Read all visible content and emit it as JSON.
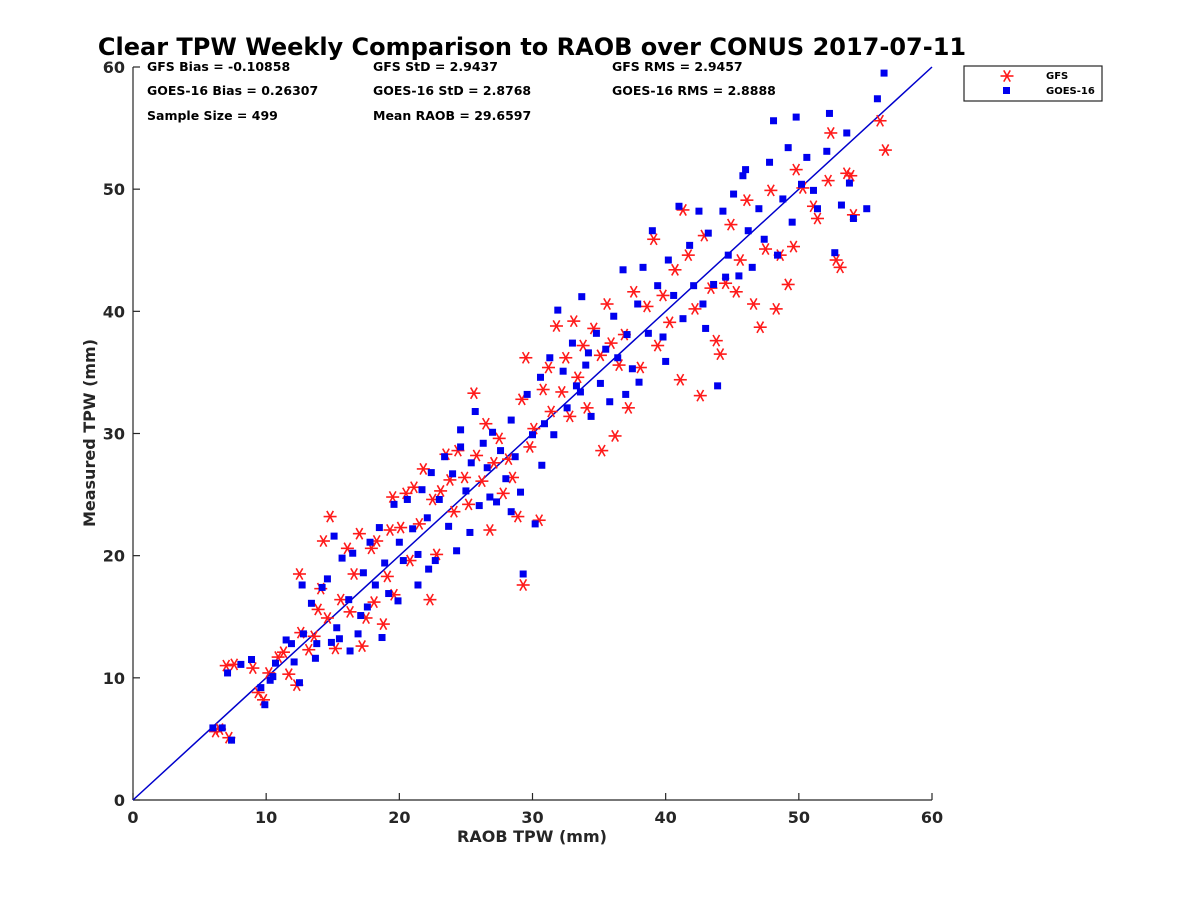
{
  "chart_data": {
    "type": "scatter",
    "title": "Clear TPW Weekly Comparison to RAOB over CONUS 2017-07-11",
    "xlabel": "RAOB TPW (mm)",
    "ylabel": "Measured TPW (mm)",
    "xlim": [
      0,
      60
    ],
    "ylim": [
      0,
      60
    ],
    "x_ticks": [
      "0",
      "10",
      "20",
      "30",
      "40",
      "50",
      "60"
    ],
    "y_ticks": [
      "0",
      "10",
      "20",
      "30",
      "40",
      "50",
      "60"
    ],
    "grid": false,
    "legend_position": "top-right, outside plot",
    "reference_line": {
      "type": "1:1",
      "from": [
        0,
        0
      ],
      "to": [
        60,
        60
      ],
      "color": "#0000cc"
    },
    "stats": {
      "gfs_bias": "GFS Bias = -0.10858",
      "gfs_std": "GFS StD = 2.9437",
      "gfs_rms": "GFS RMS = 2.9457",
      "goes_bias": "GOES-16 Bias = 0.26307",
      "goes_std": "GOES-16 StD = 2.8768",
      "goes_rms": "GOES-16 RMS = 2.8888",
      "sample_size": "Sample Size = 499",
      "mean_raob": "Mean RAOB = 29.6597"
    },
    "series": [
      {
        "name": "GFS",
        "marker": "asterisk",
        "color": "#ff1a1a",
        "points": [
          [
            6.2,
            5.6
          ],
          [
            6.5,
            5.8
          ],
          [
            7.2,
            5.1
          ],
          [
            7.0,
            11.0
          ],
          [
            7.6,
            11.1
          ],
          [
            9.0,
            10.8
          ],
          [
            9.4,
            8.8
          ],
          [
            9.8,
            8.2
          ],
          [
            10.2,
            10.4
          ],
          [
            10.9,
            11.7
          ],
          [
            11.3,
            12.1
          ],
          [
            11.7,
            10.3
          ],
          [
            12.3,
            9.4
          ],
          [
            12.6,
            13.7
          ],
          [
            12.5,
            18.5
          ],
          [
            13.2,
            12.3
          ],
          [
            13.6,
            13.4
          ],
          [
            13.9,
            15.6
          ],
          [
            14.1,
            17.3
          ],
          [
            14.3,
            21.2
          ],
          [
            14.8,
            23.2
          ],
          [
            14.6,
            14.9
          ],
          [
            15.2,
            12.4
          ],
          [
            15.6,
            16.4
          ],
          [
            16.1,
            20.6
          ],
          [
            16.3,
            15.4
          ],
          [
            16.6,
            18.5
          ],
          [
            17.0,
            21.8
          ],
          [
            17.2,
            12.6
          ],
          [
            17.5,
            14.9
          ],
          [
            17.9,
            20.6
          ],
          [
            18.1,
            16.2
          ],
          [
            18.3,
            21.2
          ],
          [
            18.8,
            14.4
          ],
          [
            19.1,
            18.3
          ],
          [
            19.3,
            22.1
          ],
          [
            19.6,
            16.8
          ],
          [
            19.5,
            24.8
          ],
          [
            20.1,
            22.3
          ],
          [
            20.5,
            25.1
          ],
          [
            20.8,
            19.6
          ],
          [
            21.1,
            25.6
          ],
          [
            21.5,
            22.6
          ],
          [
            21.8,
            27.1
          ],
          [
            22.3,
            16.4
          ],
          [
            22.5,
            24.6
          ],
          [
            22.8,
            20.1
          ],
          [
            23.1,
            25.3
          ],
          [
            23.5,
            28.3
          ],
          [
            23.8,
            26.2
          ],
          [
            24.1,
            23.6
          ],
          [
            24.4,
            28.6
          ],
          [
            24.9,
            26.4
          ],
          [
            25.2,
            24.2
          ],
          [
            25.6,
            33.3
          ],
          [
            25.8,
            28.2
          ],
          [
            26.2,
            26.1
          ],
          [
            26.5,
            30.8
          ],
          [
            26.8,
            22.1
          ],
          [
            27.1,
            27.6
          ],
          [
            27.5,
            29.6
          ],
          [
            27.8,
            25.1
          ],
          [
            28.2,
            27.9
          ],
          [
            28.5,
            26.4
          ],
          [
            28.9,
            23.2
          ],
          [
            29.2,
            32.8
          ],
          [
            29.5,
            36.2
          ],
          [
            29.3,
            17.6
          ],
          [
            29.8,
            28.9
          ],
          [
            30.1,
            30.4
          ],
          [
            30.5,
            22.9
          ],
          [
            30.8,
            33.6
          ],
          [
            31.2,
            35.4
          ],
          [
            31.4,
            31.8
          ],
          [
            31.8,
            38.8
          ],
          [
            32.2,
            33.4
          ],
          [
            32.5,
            36.2
          ],
          [
            32.8,
            31.4
          ],
          [
            33.1,
            39.2
          ],
          [
            33.4,
            34.6
          ],
          [
            33.8,
            37.2
          ],
          [
            34.1,
            32.1
          ],
          [
            34.6,
            38.6
          ],
          [
            35.1,
            36.4
          ],
          [
            35.2,
            28.6
          ],
          [
            35.6,
            40.6
          ],
          [
            35.9,
            37.4
          ],
          [
            36.2,
            29.8
          ],
          [
            36.5,
            35.6
          ],
          [
            36.9,
            38.1
          ],
          [
            37.2,
            32.1
          ],
          [
            37.6,
            41.6
          ],
          [
            38.1,
            35.4
          ],
          [
            38.6,
            40.4
          ],
          [
            39.1,
            45.9
          ],
          [
            39.4,
            37.2
          ],
          [
            39.8,
            41.3
          ],
          [
            40.3,
            39.1
          ],
          [
            40.7,
            43.4
          ],
          [
            41.1,
            34.4
          ],
          [
            41.3,
            48.3
          ],
          [
            41.7,
            44.6
          ],
          [
            42.2,
            40.2
          ],
          [
            42.6,
            33.1
          ],
          [
            42.9,
            46.2
          ],
          [
            43.4,
            41.9
          ],
          [
            43.8,
            37.6
          ],
          [
            44.1,
            36.5
          ],
          [
            44.5,
            42.3
          ],
          [
            44.9,
            47.1
          ],
          [
            45.3,
            41.6
          ],
          [
            45.6,
            44.2
          ],
          [
            46.1,
            49.1
          ],
          [
            46.6,
            40.6
          ],
          [
            47.1,
            38.7
          ],
          [
            47.5,
            45.1
          ],
          [
            47.9,
            49.9
          ],
          [
            48.3,
            40.2
          ],
          [
            48.6,
            44.6
          ],
          [
            49.2,
            42.2
          ],
          [
            49.6,
            45.3
          ],
          [
            49.8,
            51.6
          ],
          [
            50.3,
            50.1
          ],
          [
            51.1,
            48.6
          ],
          [
            51.4,
            47.6
          ],
          [
            52.2,
            50.7
          ],
          [
            52.4,
            54.6
          ],
          [
            52.8,
            44.2
          ],
          [
            53.1,
            43.6
          ],
          [
            53.6,
            51.3
          ],
          [
            54.1,
            47.9
          ],
          [
            53.9,
            51.1
          ],
          [
            56.1,
            55.6
          ],
          [
            56.5,
            53.2
          ]
        ]
      },
      {
        "name": "GOES-16",
        "marker": "square",
        "color": "#0000ee",
        "points": [
          [
            6.0,
            5.9
          ],
          [
            6.7,
            5.9
          ],
          [
            7.4,
            4.9
          ],
          [
            7.1,
            10.4
          ],
          [
            8.1,
            11.1
          ],
          [
            8.9,
            11.5
          ],
          [
            9.6,
            9.2
          ],
          [
            9.9,
            7.8
          ],
          [
            10.3,
            9.8
          ],
          [
            10.7,
            11.2
          ],
          [
            11.5,
            13.1
          ],
          [
            12.1,
            11.3
          ],
          [
            12.5,
            9.6
          ],
          [
            12.8,
            13.6
          ],
          [
            12.7,
            17.6
          ],
          [
            13.4,
            16.1
          ],
          [
            13.8,
            12.8
          ],
          [
            14.2,
            17.4
          ],
          [
            14.6,
            18.1
          ],
          [
            15.1,
            21.6
          ],
          [
            15.3,
            14.1
          ],
          [
            15.7,
            19.8
          ],
          [
            16.2,
            16.4
          ],
          [
            16.5,
            20.2
          ],
          [
            16.9,
            13.6
          ],
          [
            17.3,
            18.6
          ],
          [
            17.6,
            15.8
          ],
          [
            17.8,
            21.1
          ],
          [
            18.2,
            17.6
          ],
          [
            18.5,
            22.3
          ],
          [
            18.9,
            19.4
          ],
          [
            19.2,
            16.9
          ],
          [
            19.6,
            24.2
          ],
          [
            20.0,
            21.1
          ],
          [
            20.3,
            19.6
          ],
          [
            20.6,
            24.6
          ],
          [
            21.0,
            22.2
          ],
          [
            21.4,
            20.1
          ],
          [
            21.7,
            25.4
          ],
          [
            22.1,
            23.1
          ],
          [
            22.4,
            26.8
          ],
          [
            22.7,
            19.6
          ],
          [
            23.0,
            24.6
          ],
          [
            23.4,
            28.1
          ],
          [
            23.7,
            22.4
          ],
          [
            24.0,
            26.7
          ],
          [
            24.3,
            20.4
          ],
          [
            24.6,
            28.9
          ],
          [
            25.0,
            25.3
          ],
          [
            25.4,
            27.6
          ],
          [
            25.7,
            31.8
          ],
          [
            26.0,
            24.1
          ],
          [
            26.3,
            29.2
          ],
          [
            26.6,
            27.2
          ],
          [
            27.0,
            30.1
          ],
          [
            27.3,
            24.4
          ],
          [
            27.6,
            28.6
          ],
          [
            28.0,
            26.3
          ],
          [
            28.4,
            31.1
          ],
          [
            28.7,
            28.1
          ],
          [
            29.1,
            25.2
          ],
          [
            29.3,
            18.5
          ],
          [
            29.6,
            33.2
          ],
          [
            30.0,
            29.9
          ],
          [
            30.2,
            22.6
          ],
          [
            30.6,
            34.6
          ],
          [
            30.9,
            30.8
          ],
          [
            31.3,
            36.2
          ],
          [
            31.6,
            29.9
          ],
          [
            31.9,
            40.1
          ],
          [
            32.3,
            35.1
          ],
          [
            32.6,
            32.1
          ],
          [
            33.0,
            37.4
          ],
          [
            33.3,
            33.9
          ],
          [
            33.7,
            41.2
          ],
          [
            34.0,
            35.6
          ],
          [
            34.4,
            31.4
          ],
          [
            34.8,
            38.2
          ],
          [
            35.1,
            34.1
          ],
          [
            35.5,
            36.9
          ],
          [
            35.8,
            32.6
          ],
          [
            36.1,
            39.6
          ],
          [
            36.4,
            36.2
          ],
          [
            36.8,
            43.4
          ],
          [
            37.1,
            38.1
          ],
          [
            37.5,
            35.3
          ],
          [
            37.9,
            40.6
          ],
          [
            38.3,
            43.6
          ],
          [
            38.7,
            38.2
          ],
          [
            39.0,
            46.6
          ],
          [
            39.4,
            42.1
          ],
          [
            39.8,
            37.9
          ],
          [
            40.2,
            44.2
          ],
          [
            40.6,
            41.3
          ],
          [
            41.0,
            48.6
          ],
          [
            41.3,
            39.4
          ],
          [
            41.8,
            45.4
          ],
          [
            42.1,
            42.1
          ],
          [
            42.5,
            48.2
          ],
          [
            42.8,
            40.6
          ],
          [
            43.2,
            46.4
          ],
          [
            43.6,
            42.2
          ],
          [
            43.9,
            33.9
          ],
          [
            44.3,
            48.2
          ],
          [
            44.7,
            44.6
          ],
          [
            45.1,
            49.6
          ],
          [
            45.5,
            42.9
          ],
          [
            45.8,
            51.1
          ],
          [
            46.2,
            46.6
          ],
          [
            46.5,
            43.6
          ],
          [
            47.0,
            48.4
          ],
          [
            47.4,
            45.9
          ],
          [
            47.8,
            52.2
          ],
          [
            48.1,
            55.6
          ],
          [
            48.4,
            44.6
          ],
          [
            48.8,
            49.2
          ],
          [
            49.2,
            53.4
          ],
          [
            49.5,
            47.3
          ],
          [
            49.8,
            55.9
          ],
          [
            50.2,
            50.4
          ],
          [
            51.1,
            49.9
          ],
          [
            51.4,
            48.4
          ],
          [
            52.1,
            53.1
          ],
          [
            52.3,
            56.2
          ],
          [
            52.7,
            44.8
          ],
          [
            53.2,
            48.7
          ],
          [
            53.6,
            54.6
          ],
          [
            53.8,
            50.5
          ],
          [
            54.1,
            47.6
          ],
          [
            55.9,
            57.4
          ],
          [
            56.4,
            59.5
          ],
          [
            55.1,
            48.4
          ],
          [
            50.6,
            52.6
          ],
          [
            46.0,
            51.6
          ],
          [
            44.5,
            42.8
          ],
          [
            43.0,
            38.6
          ],
          [
            40.0,
            35.9
          ],
          [
            38.0,
            34.2
          ],
          [
            37.0,
            33.2
          ],
          [
            34.2,
            36.6
          ],
          [
            33.6,
            33.4
          ],
          [
            30.7,
            27.4
          ],
          [
            28.4,
            23.6
          ],
          [
            26.8,
            24.8
          ],
          [
            25.3,
            21.9
          ],
          [
            24.6,
            30.3
          ],
          [
            22.2,
            18.9
          ],
          [
            21.4,
            17.6
          ],
          [
            19.9,
            16.3
          ],
          [
            18.7,
            13.3
          ],
          [
            17.1,
            15.1
          ],
          [
            16.3,
            12.2
          ],
          [
            15.5,
            13.2
          ],
          [
            14.9,
            12.9
          ],
          [
            13.7,
            11.6
          ],
          [
            11.9,
            12.8
          ],
          [
            10.5,
            10.1
          ]
        ]
      }
    ]
  }
}
